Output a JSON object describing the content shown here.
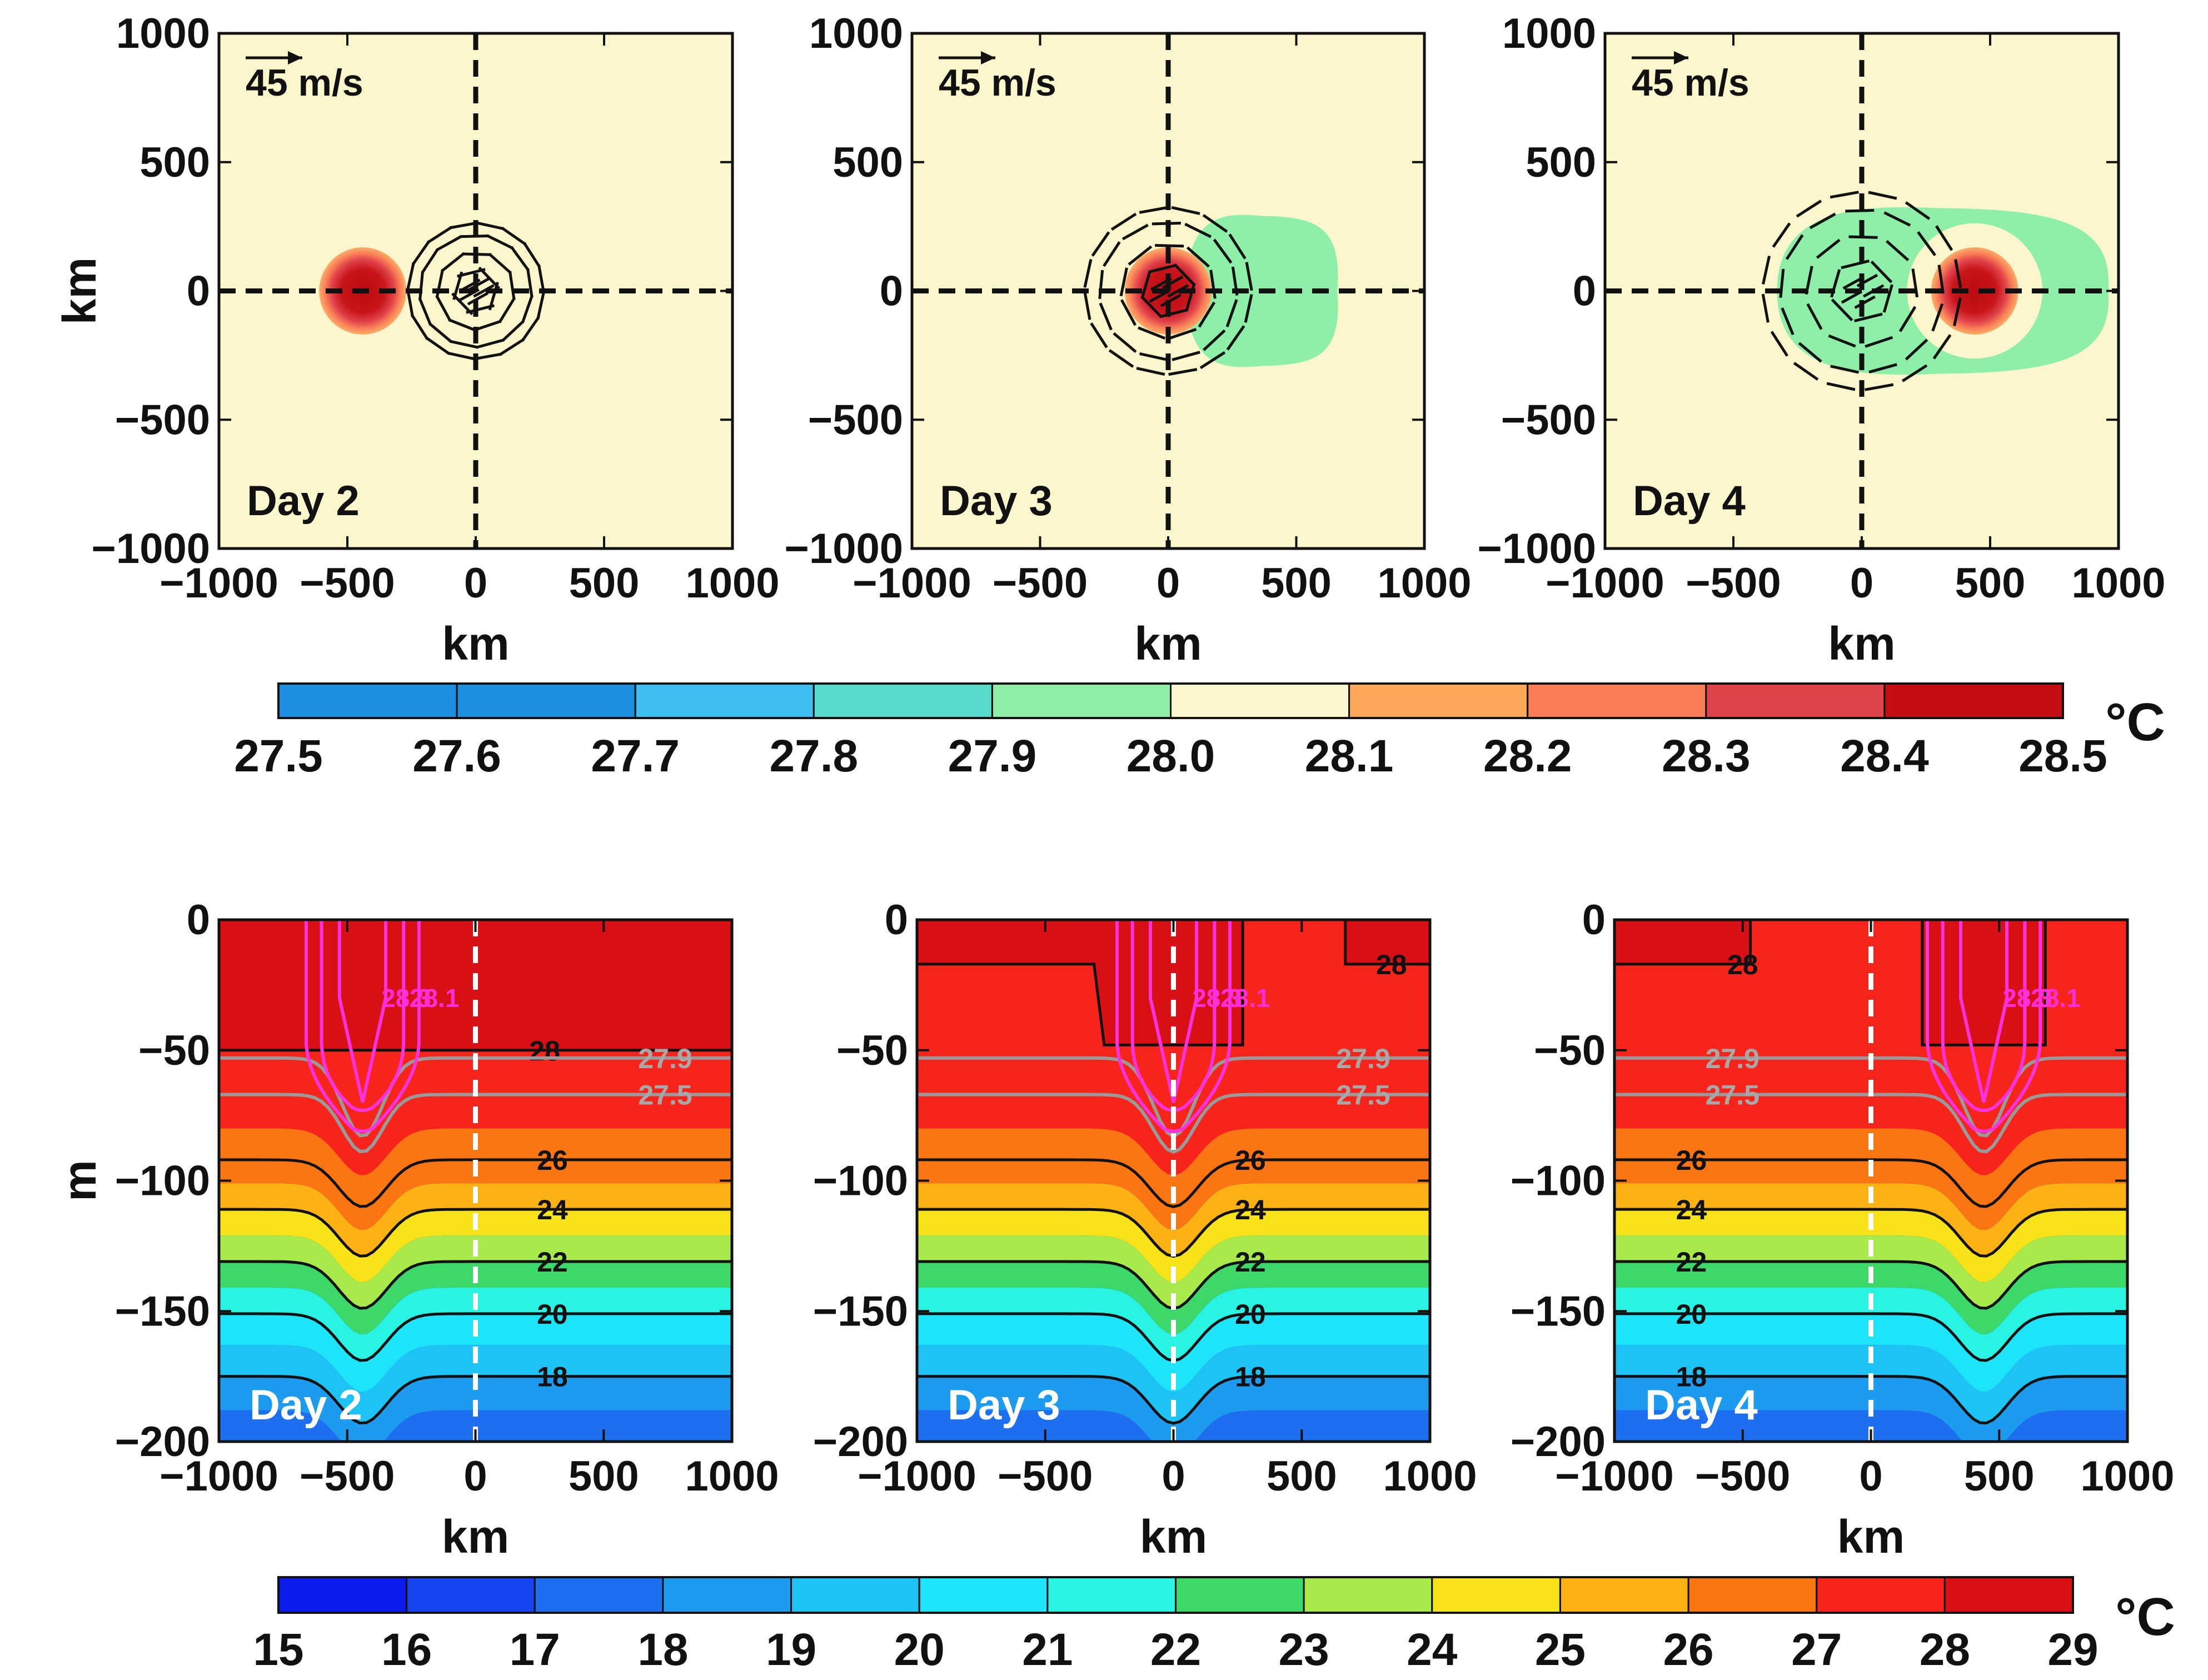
{
  "figure": {
    "vector_scale_label": "45 m/s",
    "axis_unit_label": "km",
    "depth_label": "m",
    "colorbar_unit": "°C"
  },
  "chart_data": [
    {
      "type": "heatmap",
      "id": "sst-day-2",
      "panel_label": "Day 2",
      "xlabel": "km",
      "ylabel": "km",
      "xlim": [
        -1000,
        1000
      ],
      "ylim": [
        -1000,
        1000
      ],
      "xticks": [
        "−1000",
        "−500",
        "0",
        "500",
        "1000"
      ],
      "yticks": [
        "1000",
        "500",
        "0",
        "−500",
        "−1000"
      ],
      "background_sst": 28.05,
      "warm_eddy": {
        "center_km": [
          -440,
          0
        ],
        "radius_km": 170,
        "peak_sst": 28.45
      },
      "cool_wake": null,
      "storm_center_km": [
        0,
        0
      ],
      "wind_vectors": true
    },
    {
      "type": "heatmap",
      "id": "sst-day-3",
      "panel_label": "Day 3",
      "xlabel": "km",
      "ylabel": "",
      "xlim": [
        -1000,
        1000
      ],
      "ylim": [
        -1000,
        1000
      ],
      "xticks": [
        "−1000",
        "−500",
        "0",
        "500",
        "1000"
      ],
      "yticks": [
        "1000",
        "500",
        "0",
        "−500",
        "−1000"
      ],
      "background_sst": 28.05,
      "warm_eddy": {
        "center_km": [
          0,
          0
        ],
        "radius_km": 170,
        "peak_sst": 28.45
      },
      "cool_wake": {
        "x_range_km": [
          70,
          660
        ],
        "half_width_km": 300,
        "sst": 27.95
      },
      "storm_center_km": [
        0,
        0
      ],
      "wind_vectors": true
    },
    {
      "type": "heatmap",
      "id": "sst-day-4",
      "panel_label": "Day 4",
      "xlabel": "km",
      "ylabel": "",
      "xlim": [
        -1000,
        1000
      ],
      "ylim": [
        -1000,
        1000
      ],
      "xticks": [
        "−1000",
        "−500",
        "0",
        "500",
        "1000"
      ],
      "yticks": [
        "1000",
        "500",
        "0",
        "−500",
        "−1000"
      ],
      "background_sst": 28.05,
      "warm_eddy": {
        "center_km": [
          440,
          0
        ],
        "radius_km": 170,
        "peak_sst": 28.45
      },
      "cool_wake": {
        "x_range_km": [
          -330,
          960
        ],
        "half_width_km": 330,
        "sst": 27.95
      },
      "storm_center_km": [
        0,
        0
      ],
      "wind_vectors": true
    },
    {
      "type": "heatmap",
      "id": "section-day-2",
      "panel_label": "Day 2",
      "xlabel": "km",
      "ylabel": "m",
      "xlim": [
        -1000,
        1000
      ],
      "ylim": [
        -200,
        0
      ],
      "xticks": [
        "−1000",
        "−500",
        "0",
        "500",
        "1000"
      ],
      "yticks": [
        "0",
        "−50",
        "−100",
        "−150",
        "−200"
      ],
      "eddy_center_km": -440,
      "storm_position_km": 0,
      "isotherms": [
        {
          "temp": 28,
          "depth_m": -50,
          "label": "28"
        },
        {
          "temp": 26,
          "depth_m": -92,
          "label": "26"
        },
        {
          "temp": 24,
          "depth_m": -111,
          "label": "24"
        },
        {
          "temp": 22,
          "depth_m": -131,
          "label": "22"
        },
        {
          "temp": 20,
          "depth_m": -151,
          "label": "20"
        },
        {
          "temp": 18,
          "depth_m": -175,
          "label": "18"
        }
      ],
      "gray_contours": [
        {
          "temp": 27.9,
          "depth_m": -53,
          "label": "27.9"
        },
        {
          "temp": 27.5,
          "depth_m": -67,
          "label": "27.5"
        }
      ],
      "magenta_labels": [
        "28.3",
        "28.1"
      ]
    },
    {
      "type": "heatmap",
      "id": "section-day-3",
      "panel_label": "Day 3",
      "xlabel": "km",
      "ylabel": "",
      "xlim": [
        -1000,
        1000
      ],
      "ylim": [
        -200,
        0
      ],
      "xticks": [
        "−1000",
        "−500",
        "0",
        "500",
        "1000"
      ],
      "yticks": [
        "0",
        "−50",
        "−100",
        "−150",
        "−200"
      ],
      "eddy_center_km": 0,
      "storm_position_km": 0,
      "isotherms": [
        {
          "temp": 28,
          "depth_m": -17,
          "label": "28"
        },
        {
          "temp": 26,
          "depth_m": -92,
          "label": "26"
        },
        {
          "temp": 24,
          "depth_m": -111,
          "label": "24"
        },
        {
          "temp": 22,
          "depth_m": -131,
          "label": "22"
        },
        {
          "temp": 20,
          "depth_m": -151,
          "label": "20"
        },
        {
          "temp": 18,
          "depth_m": -175,
          "label": "18"
        }
      ],
      "gray_contours": [
        {
          "temp": 27.9,
          "depth_m": -53,
          "label": "27.9"
        },
        {
          "temp": 27.5,
          "depth_m": -67,
          "label": "27.5"
        }
      ],
      "magenta_labels": [
        "28.3",
        "28.1"
      ]
    },
    {
      "type": "heatmap",
      "id": "section-day-4",
      "panel_label": "Day 4",
      "xlabel": "km",
      "ylabel": "",
      "xlim": [
        -1000,
        1000
      ],
      "ylim": [
        -200,
        0
      ],
      "xticks": [
        "−1000",
        "−500",
        "0",
        "500",
        "1000"
      ],
      "yticks": [
        "0",
        "−50",
        "−100",
        "−150",
        "−200"
      ],
      "eddy_center_km": 440,
      "storm_position_km": 0,
      "isotherms": [
        {
          "temp": 28,
          "depth_m": -17,
          "label": "28"
        },
        {
          "temp": 26,
          "depth_m": -92,
          "label": "26"
        },
        {
          "temp": 24,
          "depth_m": -111,
          "label": "24"
        },
        {
          "temp": 22,
          "depth_m": -131,
          "label": "22"
        },
        {
          "temp": 20,
          "depth_m": -151,
          "label": "20"
        },
        {
          "temp": 18,
          "depth_m": -175,
          "label": "18"
        }
      ],
      "gray_contours": [
        {
          "temp": 27.9,
          "depth_m": -53,
          "label": "27.9"
        },
        {
          "temp": 27.5,
          "depth_m": -67,
          "label": "27.5"
        }
      ],
      "magenta_labels": [
        "28.3",
        "28.1"
      ]
    }
  ],
  "colorbars": [
    {
      "id": "sst-colorbar",
      "unit": "°C",
      "ticks": [
        "27.5",
        "27.6",
        "27.7",
        "27.8",
        "27.9",
        "28.0",
        "28.1",
        "28.2",
        "28.3",
        "28.4",
        "28.5"
      ],
      "colors": [
        "#1e8fe0",
        "#1e8fe0",
        "#3fbef2",
        "#59d9c9",
        "#8ef0a8",
        "#fbf6cc",
        "#fba959",
        "#f97d56",
        "#e0444b",
        "#c40d12"
      ]
    },
    {
      "id": "section-colorbar",
      "unit": "°C",
      "ticks": [
        "15",
        "16",
        "17",
        "18",
        "19",
        "20",
        "21",
        "22",
        "23",
        "24",
        "25",
        "26",
        "27",
        "28",
        "29"
      ],
      "colors": [
        "#0a1cf0",
        "#1445ee",
        "#1d6ff0",
        "#1d9cef",
        "#1ec3f5",
        "#1de4f8",
        "#29f4e4",
        "#3cd86a",
        "#a7ea4a",
        "#f8e319",
        "#fdb213",
        "#fb7512",
        "#f6241a",
        "#d80f14"
      ]
    }
  ]
}
